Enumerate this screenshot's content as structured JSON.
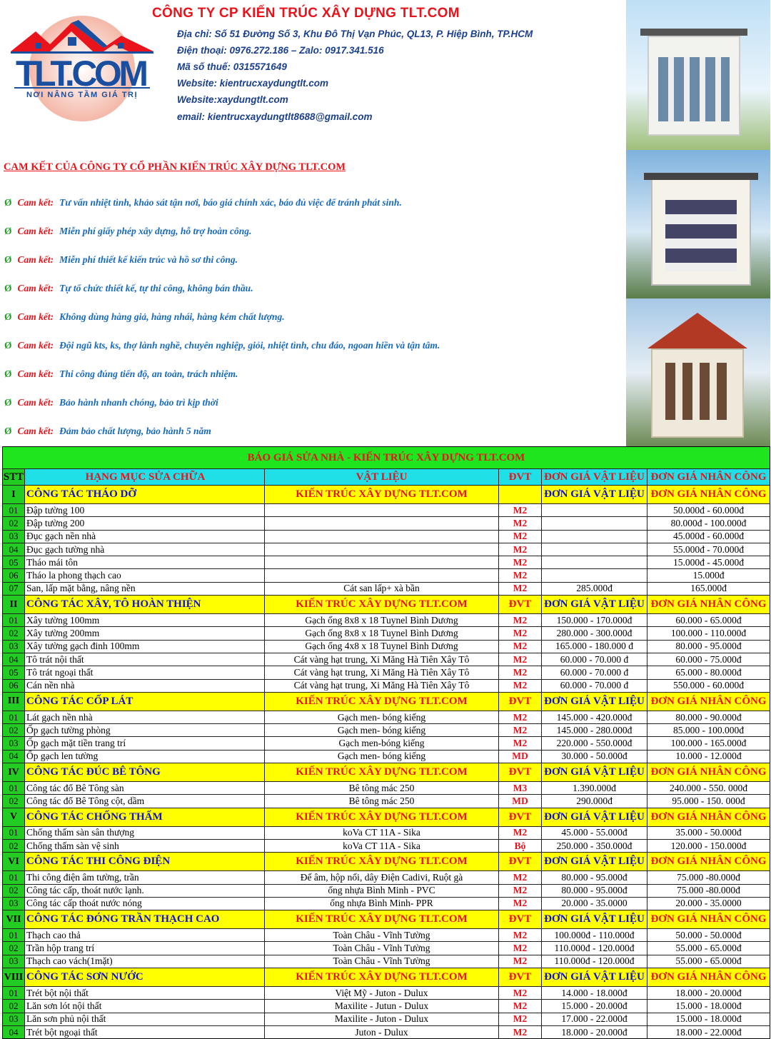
{
  "header": {
    "company": "CÔNG TY CP KIẾN TRÚC XÂY DỰNG TLT.COM",
    "logo_text": "TLT.COM",
    "logo_slogan": "NƠI NÂNG TẦM GIÁ TRỊ",
    "info": [
      "Địa chỉ: Số 51 Đường Số 3, Khu Đô Thị Vạn Phúc, QL13, P. Hiệp Bình, TP.HCM",
      "Điện thoại: 0976.272.186 – Zalo: 0917.341.516",
      "Mã số thuế: 0315571649",
      "Website: kientrucxaydungtlt.com",
      "Website:xaydungtlt.com",
      "email: kientrucxaydungtlt8688@gmail.com"
    ]
  },
  "commitments": {
    "title": "CAM KẾT CỦA CÔNG TY CỔ PHẦN KIẾN TRÚC XÂY DỰNG TLT.COM",
    "bullet": "Ø",
    "keyword": "Cam kết:",
    "items": [
      "Tư vấn nhiệt tình, khảo sát tận nơi, báo giá chính xác, báo đủ việc để tránh phát sinh.",
      "Miễn phí giấy phép xây dựng, hỗ trợ hoàn công.",
      "Miễn phí thiết kế kiến trúc và hồ sơ thi công.",
      "Tự tổ chức thiết kế, tự thi công, không bán thầu.",
      "Không dùng hàng giả, hàng nhái, hàng kém chất  lượng.",
      "Đội ngũ kts, ks, thợ lành nghề, chuyên nghiệp, giỏi, nhiệt tình, chu đáo, ngoan hiền và tận tâm.",
      "Thi công đúng tiến độ, an toàn, trách nhiệm.",
      "Bảo hành nhanh chóng, bảo trì kịp thời",
      "Đảm bảo chất lượng, bảo hành 5 năm"
    ]
  },
  "table": {
    "title": "BÁO GIÁ SỬA NHÀ - KIẾN TRÚC XÂY DỰNG TLT.COM",
    "headers": [
      "STT",
      "HẠNG MỤC SỬA CHỮA",
      "VẬT LIỆU",
      "ĐVT",
      "ĐƠN GIÁ VẬT LIỆU",
      "ĐƠN GIÁ NHÂN CÔNG"
    ],
    "sections": [
      {
        "no": "I",
        "name": "CÔNG TÁC THÁO DỠ",
        "brand": "KIẾN TRÚC XÂY DỰNG TLT.COM",
        "unit": "",
        "mat": "ĐƠN GIÁ VẬT LIỆU",
        "lab": "ĐƠN GIÁ NHÂN CÔNG",
        "rows": [
          [
            "01",
            "Đập tường 100",
            "",
            "M2",
            "",
            "50.000đ - 60.000đ"
          ],
          [
            "02",
            "Đập tường 200",
            "",
            "M2",
            "",
            "80.000đ - 100.000đ"
          ],
          [
            "03",
            "Đục gạch nền nhà",
            "",
            "M2",
            "",
            "45.000đ - 60.000đ"
          ],
          [
            "04",
            "Đục gạch tường nhà",
            "",
            "M2",
            "",
            "55.000đ - 70.000đ"
          ],
          [
            "05",
            "Tháo mái tôn",
            "",
            "M2",
            "",
            "15.000đ - 45.000đ"
          ],
          [
            "06",
            "Tháo la phong thạch cao",
            "",
            "M2",
            "",
            "15.000đ"
          ],
          [
            "07",
            "San, lấp mặt bằng, nâng nền",
            "Cát san lấp+ xà bần",
            "M2",
            "285.000đ",
            "165.000đ"
          ]
        ]
      },
      {
        "no": "II",
        "name": "CÔNG TÁC XÂY, TÔ HOÀN THIỆN",
        "brand": "KIẾN TRÚC XÂY DỰNG TLT.COM",
        "unit": "ĐVT",
        "mat": "ĐƠN GIÁ VẬT LIỆU",
        "lab": "ĐƠN GIÁ NHÂN CÔNG",
        "rows": [
          [
            "01",
            "Xây tường 100mm",
            "Gạch ống 8x8 x 18 Tuynel Bình Dương",
            "M2",
            "150.000 - 170.000đ",
            "60.000 - 65.000đ"
          ],
          [
            "02",
            "Xây tường 200mm",
            "Gạch ống 8x8 x 18 Tuynel Bình Dương",
            "M2",
            "280.000 - 300.000đ",
            "100.000 - 110.000đ"
          ],
          [
            "03",
            "Xây tường gạch đinh 100mm",
            "Gạch ống 4x8 x 18 Tuynel Bình Dương",
            "M2",
            "165.000 - 180.000 đ",
            "80.000 - 95.000đ"
          ],
          [
            "04",
            "Tô trát nội thất",
            "Cát vàng hạt trung, Xi Măng Hà Tiên Xây Tô",
            "M2",
            "60.000 - 70.000 đ",
            "60.000 - 75.000đ"
          ],
          [
            "05",
            "Tô trát ngoại  thất",
            "Cát vàng hạt trung, Xi Măng Hà Tiên Xây Tô",
            "M2",
            "60.000 - 70.000 đ",
            "65.000 - 80.000đ"
          ],
          [
            "06",
            "Cán nền nhà",
            "Cát vàng hạt trung, Xi Măng Hà Tiên Xây Tô",
            "M2",
            "60.000 - 70.000 đ",
            "550.000 - 60.000đ"
          ]
        ]
      },
      {
        "no": "III",
        "name": "CÔNG TÁC CỐP LÁT",
        "brand": "KIẾN TRÚC XÂY DỰNG TLT.COM",
        "unit": "ĐVT",
        "mat": "ĐƠN GIÁ VẬT LIỆU",
        "lab": "ĐƠN GIÁ NHÂN CÔNG",
        "rows": [
          [
            "01",
            "Lát gạch nền nhà",
            "Gạch men- bóng kiếng",
            "M2",
            "145.000 - 420.000đ",
            "80.000 - 90.000đ"
          ],
          [
            "02",
            "Ốp gạch tường phòng",
            "Gạch men- bóng kiếng",
            "M2",
            "145.000 - 280.000đ",
            "85.000 - 100.000đ"
          ],
          [
            "03",
            "Ốp gạch mặt tiền trang trí",
            "Gạch men-bóng kiếng",
            "M2",
            "220.000 - 550.000đ",
            "100.000 - 165.000đ"
          ],
          [
            "04",
            "Ốp gạch len tường",
            "Gạch men- bóng kiếng",
            "MD",
            "30.000 - 50.000đ",
            "10.000 - 12.000đ"
          ]
        ]
      },
      {
        "no": "IV",
        "name": "CÔNG TÁC ĐÚC BÊ TÔNG",
        "brand": "KIẾN TRÚC XÂY DỰNG TLT.COM",
        "unit": "ĐVT",
        "mat": "ĐƠN GIÁ VẬT LIỆU",
        "lab": "ĐƠN GIÁ NHÂN CÔNG",
        "rows": [
          [
            "01",
            "Công tác đổ Bê Tông sàn",
            "Bê tông mác 250",
            "M3",
            "1.390.000đ",
            "240.000 - 550. 000đ"
          ],
          [
            "02",
            "Công tác đổ Bê Tông cột, dầm",
            "Bê tông mác 250",
            "MD",
            "290.000đ",
            "95.000 - 150. 000đ"
          ]
        ]
      },
      {
        "no": "V",
        "name": "CÔNG TÁC CHỐNG THẤM",
        "brand": "KIẾN TRÚC XÂY DỰNG TLT.COM",
        "unit": "ĐVT",
        "mat": "ĐƠN GIÁ VẬT LIỆU",
        "lab": "ĐƠN GIÁ NHÂN CÔNG",
        "rows": [
          [
            "01",
            "Chống thấm sàn sân thượng",
            "koVa CT 11A - Sika",
            "M2",
            "45.000 - 55.000đ",
            "35.000 - 50.000đ"
          ],
          [
            "02",
            "Chống thấm sàn vệ sinh",
            "koVa CT 11A - Sika",
            "Bộ",
            "250.000 - 350.000đ",
            "120.000 - 150.000đ"
          ]
        ]
      },
      {
        "no": "VI",
        "name": "CÔNG TÁC THI CÔNG ĐIỆN",
        "brand": "KIẾN TRÚC XÂY DỰNG TLT.COM",
        "unit": "ĐVT",
        "mat": "ĐƠN GIÁ VẬT LIỆU",
        "lab": "ĐƠN GIÁ NHÂN CÔNG",
        "rows": [
          [
            "01",
            "Thi công điện âm tường, trần",
            "Đế âm, hộp nối, dây Điện Cadivi, Ruột gà",
            "M2",
            "80.000 - 95.000đ",
            "75.000 -80.000đ"
          ],
          [
            "02",
            "Công tác cấp, thoát nước lạnh.",
            "ống nhựa Bình Minh - PVC",
            "M2",
            "80.000 - 95.000đ",
            "75.000 -80.000đ"
          ],
          [
            "03",
            "Công tác cấp thoát nước nóng",
            "ống nhựa Bình Minh- PPR",
            "M2",
            "20.000 - 35.0000",
            "20.000 - 35.0000"
          ]
        ]
      },
      {
        "no": "VII",
        "name": "CÔNG TÁC ĐÓNG TRẦN THẠCH CAO",
        "brand": "KIẾN TRÚC XÂY DỰNG TLT.COM",
        "unit": "ĐVT",
        "mat": "ĐƠN GIÁ VẬT LIỆU",
        "lab": "ĐƠN GIÁ NHÂN CÔNG",
        "rows": [
          [
            "01",
            "Thạch cao thả",
            "Toàn Châu - Vĩnh Tường",
            "M2",
            "100.000đ - 110.000đ",
            "50.000 - 50.000đ"
          ],
          [
            "02",
            "Trần hộp trang trí",
            "Toàn Châu - Vĩnh Tường",
            "M2",
            "110.000đ - 120.000đ",
            "55.000 - 65.000đ"
          ],
          [
            "03",
            "Thạch cao vách(1mặt)",
            "Toàn Châu - Vĩnh Tường",
            "M2",
            "110.000đ - 120.000đ",
            "55.000 - 65.000đ"
          ]
        ]
      },
      {
        "no": "VIII",
        "name": "CÔNG TÁC SƠN NƯỚC",
        "brand": "KIẾN TRÚC XÂY DỰNG TLT.COM",
        "unit": "ĐVT",
        "mat": "ĐƠN GIÁ VẬT LIỆU",
        "lab": "ĐƠN GIÁ NHÂN CÔNG",
        "rows": [
          [
            "01",
            "Trét bột nội thất",
            "Việt Mỹ - Juton - Dulux",
            "M2",
            "14.000 - 18.000đ",
            "18.000 - 20.000đ"
          ],
          [
            "02",
            "Lăn sơn lót nội thất",
            "Maxilite - Jutun - Dulux",
            "M2",
            "15.000 - 20.000đ",
            "15.000 - 18.000đ"
          ],
          [
            "03",
            "Lăn sơn phủ nội thất",
            "Maxilite - Juton - Dulux",
            "M2",
            "17.000 - 22.000đ",
            "15.000 - 18.000đ"
          ],
          [
            "04",
            "Trét bột ngoại thất",
            "Juton - Dulux",
            "M2",
            "18.000 - 20.000đ",
            "18.000 - 22.000đ"
          ]
        ]
      }
    ]
  },
  "colors": {
    "red": "#e8131b",
    "blue": "#1a3f8f",
    "green": "#1ee51e",
    "yellow": "#ffff00",
    "cyan": "#1ee0e6"
  }
}
